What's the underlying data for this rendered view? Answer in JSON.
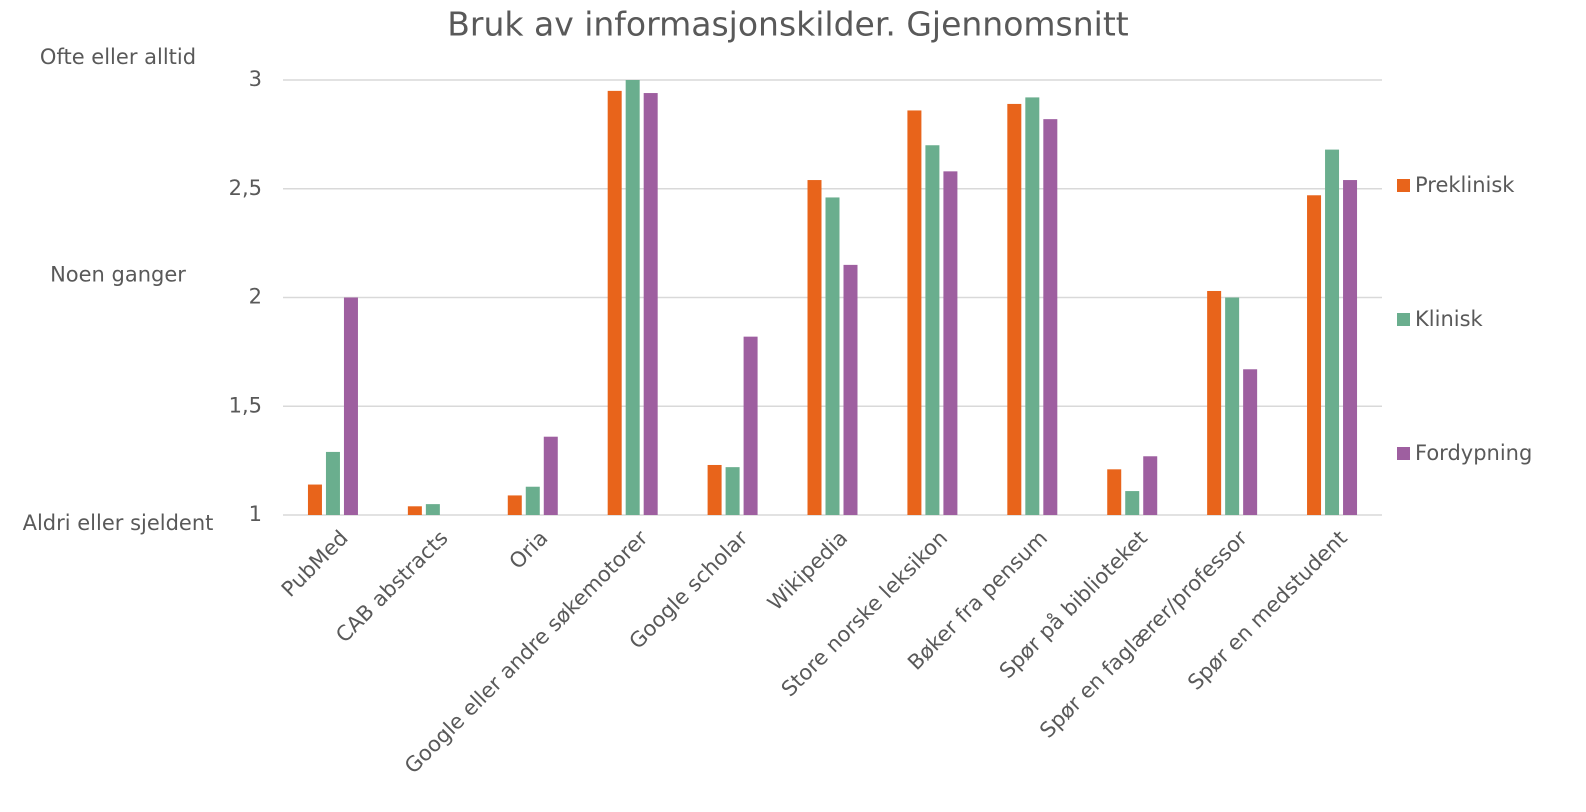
{
  "chart_data": {
    "type": "bar",
    "title": "Bruk av informasjonskilder. Gjennomsnitt",
    "categories": [
      "PubMed",
      "CAB abstracts",
      "Oria",
      "Google eller andre søkemotorer",
      "Google scholar",
      "Wikipedia",
      "Store norske leksikon",
      "Bøker fra pensum",
      "Spør på biblioteket",
      "Spør en faglærer/professor",
      "Spør en medstudent"
    ],
    "series": [
      {
        "name": "Preklinisk",
        "color": "#e8641b",
        "values": [
          1.14,
          1.04,
          1.09,
          2.95,
          1.23,
          2.54,
          2.86,
          2.89,
          1.21,
          2.03,
          2.47
        ]
      },
      {
        "name": "Klinisk",
        "color": "#6aae8e",
        "values": [
          1.29,
          1.05,
          1.13,
          3.0,
          1.22,
          2.46,
          2.7,
          2.92,
          1.11,
          2.0,
          2.68
        ]
      },
      {
        "name": "Fordypning",
        "color": "#9e5fa0",
        "values": [
          2.0,
          null,
          1.36,
          2.94,
          1.82,
          2.15,
          2.58,
          2.82,
          1.27,
          1.67,
          2.54
        ]
      }
    ],
    "ylim": [
      1,
      3
    ],
    "yticks": [
      1,
      {
        "value": 1.5,
        "label": "1,5"
      },
      2,
      {
        "value": 2.5,
        "label": "2,5"
      },
      3
    ],
    "annotations": [
      {
        "text": "Ofte eller alltid",
        "y": 3
      },
      {
        "text": "Noen ganger",
        "y": 2
      },
      {
        "text": "Aldri eller sjeldent",
        "y": 1
      }
    ],
    "grid": true,
    "legend": "right"
  }
}
